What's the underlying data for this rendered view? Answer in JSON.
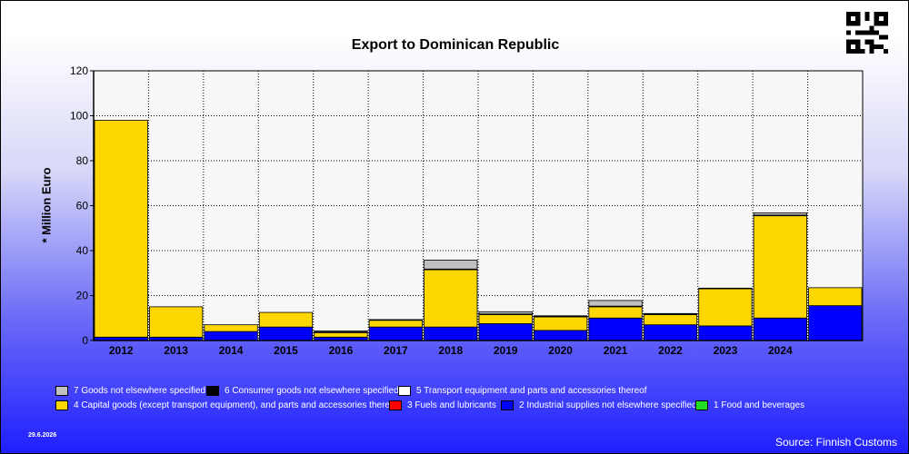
{
  "chart_data": {
    "type": "bar",
    "stacked": true,
    "title": "Export to Dominican Republic",
    "ylabel": "* Million Euro",
    "xlabel": "",
    "ylim": [
      0,
      120
    ],
    "yticks": [
      0,
      20,
      40,
      60,
      80,
      100,
      120
    ],
    "grid": true,
    "categories": [
      "2012",
      "2013",
      "2014",
      "2015",
      "2016",
      "2017",
      "2018",
      "2019",
      "2020",
      "2021",
      "2022",
      "2023",
      "2024",
      ""
    ],
    "series": [
      {
        "name": "1 Food and beverages",
        "color": "#22dd22",
        "values": [
          0,
          0,
          0,
          0,
          0,
          0,
          0,
          0,
          0,
          0,
          0,
          0,
          0,
          0
        ]
      },
      {
        "name": "2 Industrial supplies not elsewhere specified",
        "color": "#0000ff",
        "values": [
          1.5,
          1.5,
          4,
          6,
          1.5,
          6,
          6,
          7.5,
          4.5,
          10,
          7,
          6.5,
          10,
          15.5
        ]
      },
      {
        "name": "3 Fuels and lubricants",
        "color": "#ff0000",
        "values": [
          0,
          0,
          0,
          0,
          0,
          0,
          0,
          0,
          0,
          0,
          0,
          0,
          0,
          0
        ]
      },
      {
        "name": "4 Capital goods (except transport equipment), and parts and accessories thereof",
        "color": "#ffd700",
        "values": [
          96.5,
          13.5,
          3,
          6.5,
          2,
          3,
          25.5,
          4,
          6,
          5,
          4.5,
          16.5,
          45.5,
          8
        ]
      },
      {
        "name": "5  Transport equipment and parts and accessories thereof",
        "color": "#ffffff",
        "values": [
          0,
          0,
          0,
          0,
          0,
          0,
          0,
          0,
          0,
          0,
          0,
          0,
          0,
          0
        ]
      },
      {
        "name": "6 Consumer goods not elsewhere specified",
        "color": "#000000",
        "values": [
          0,
          0,
          0,
          0,
          0.3,
          0.3,
          0.3,
          0.3,
          0.5,
          0.3,
          0.5,
          0.3,
          0.3,
          0
        ]
      },
      {
        "name": "7 Goods not elsewhere specified",
        "color": "#c0c0c0",
        "values": [
          0,
          0,
          0,
          0,
          0.5,
          0,
          4,
          1,
          0,
          2.5,
          0,
          0,
          1,
          0
        ]
      }
    ]
  },
  "legend": {
    "row1": [
      "7 Goods not elsewhere specified",
      "6 Consumer goods not elsewhere specified",
      "5  Transport equipment and parts and accessories thereof"
    ],
    "row2": [
      "4 Capital goods (except transport equipment), and parts and accessories thereof",
      "3 Fuels and lubricants",
      "2 Industrial supplies not elsewhere specified",
      "1 Food and beverages"
    ]
  },
  "colors": {
    "plot_background": "#f7f7f7",
    "grid": "#000000"
  },
  "footer": {
    "date": "29.6.2026",
    "source": "Source: Finnish Customs"
  }
}
